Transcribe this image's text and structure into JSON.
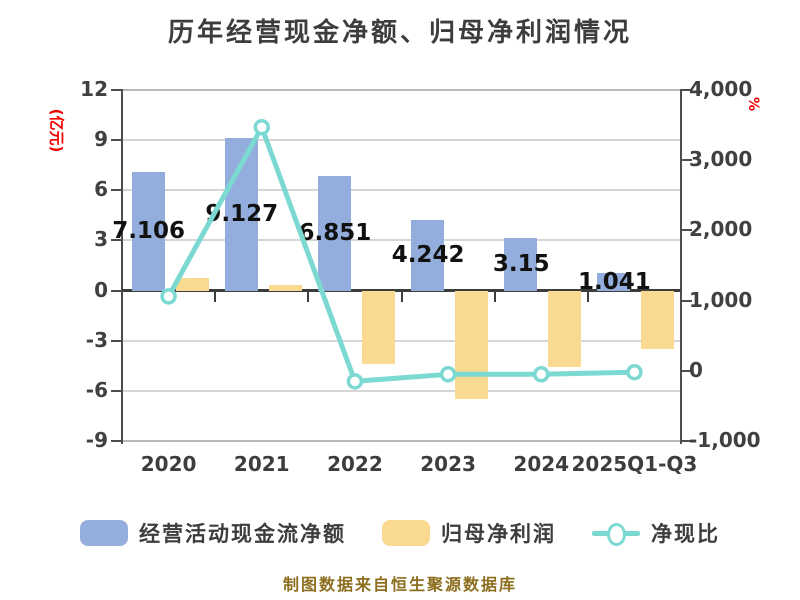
{
  "title": "历年经营现金净额、归母净利润情况",
  "caption": "制图数据来自恒生聚源数据库",
  "left_axis": {
    "unit": "(亿元)",
    "tick_labels": [
      "12",
      "9",
      "6",
      "3",
      "0",
      "-3",
      "-6",
      "-9"
    ],
    "tick_values": [
      12,
      9,
      6,
      3,
      0,
      -3,
      -6,
      -9
    ],
    "min": -9,
    "max": 12
  },
  "right_axis": {
    "unit": "%",
    "tick_labels": [
      "4,000",
      "3,000",
      "2,000",
      "1,000",
      "0",
      "-1,000"
    ],
    "tick_values": [
      4000,
      3000,
      2000,
      1000,
      0,
      -1000
    ],
    "min": -1000,
    "max": 4000
  },
  "chart_data": {
    "type": "bar",
    "subtype": "grouped-bar-with-line",
    "categories": [
      "2020",
      "2021",
      "2022",
      "2023",
      "2024",
      "2025Q1-Q3"
    ],
    "series": [
      {
        "name": "经营活动现金流净额",
        "type": "bar",
        "axis": "left",
        "color": "#93AEDC",
        "values": [
          7.106,
          9.127,
          6.851,
          4.242,
          3.15,
          1.041
        ],
        "labels": [
          "7.106",
          "9.127",
          "6.851",
          "4.242",
          "3.15",
          "1.041"
        ]
      },
      {
        "name": "归母净利润",
        "type": "bar",
        "axis": "left",
        "color": "#FAD991",
        "values": [
          0.75,
          0.33,
          -4.4,
          -6.5,
          -4.6,
          -3.5
        ]
      },
      {
        "name": "净现比",
        "type": "line",
        "axis": "right",
        "color": "#7CD9D2",
        "marker": "circle",
        "marker_fill": "#ffffff",
        "values": [
          1060,
          3470,
          -150,
          -50,
          -50,
          -20
        ]
      }
    ],
    "ylim_left": [
      -9,
      12
    ],
    "ylim_right": [
      -1000,
      4000
    ],
    "grid": true,
    "legend_position": "bottom"
  },
  "legend": {
    "items": [
      {
        "label": "经营活动现金流净额",
        "swatch": "bar",
        "color": "#93AEDC"
      },
      {
        "label": "归母净利润",
        "swatch": "bar",
        "color": "#FAD991"
      },
      {
        "label": "净现比",
        "swatch": "line-marker",
        "color": "#7CD9D2"
      }
    ]
  },
  "colors": {
    "cash_flow_bar": "#93AEDC",
    "net_profit_bar": "#FAD991",
    "ratio_line": "#7CD9D2",
    "axis_text": "#404040",
    "title_text": "#3d3d3d",
    "unit_text": "#f20000",
    "caption_text": "#8c6e1e",
    "background": "#ffffff"
  }
}
